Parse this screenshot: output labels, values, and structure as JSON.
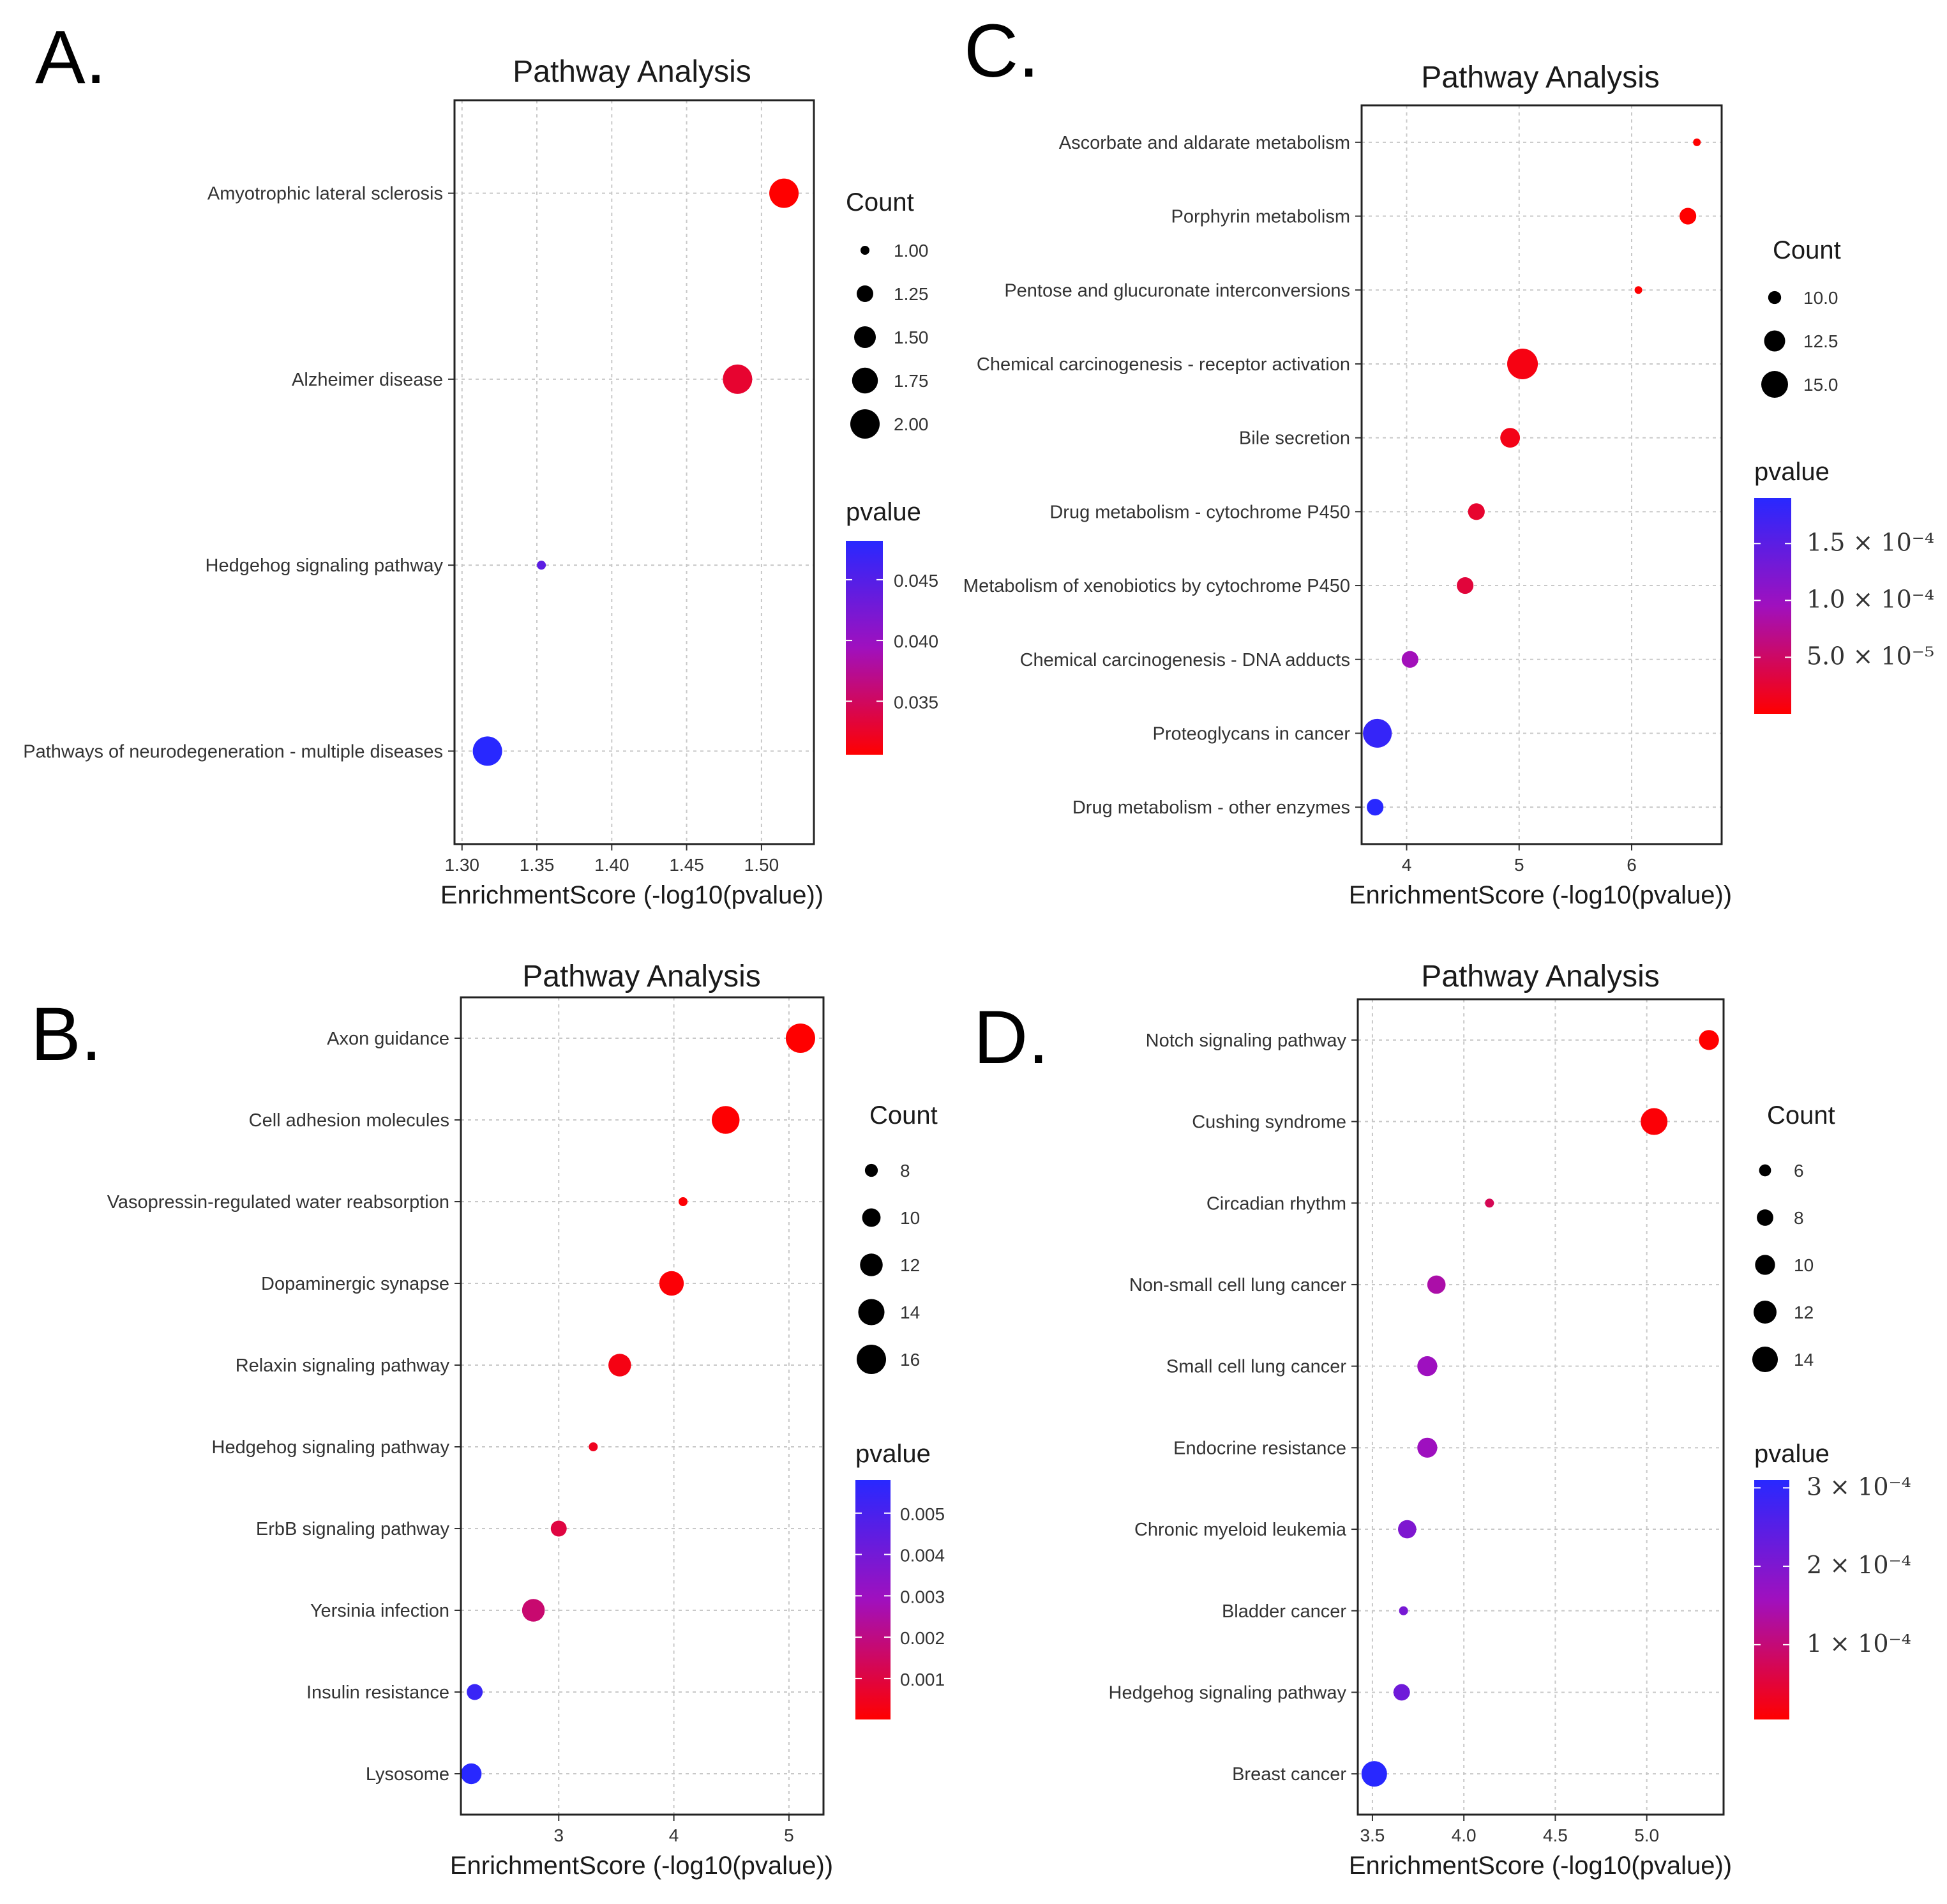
{
  "chart_data": [
    {
      "panel": "A.",
      "type": "scatter",
      "title": "Pathway Analysis",
      "xlabel": "EnrichmentScore (-log10(pvalue))",
      "xlim": [
        1.295,
        1.535
      ],
      "xticks": [
        "1.30",
        "1.35",
        "1.40",
        "1.45",
        "1.50"
      ],
      "xtick_values": [
        1.3,
        1.35,
        1.4,
        1.45,
        1.5
      ],
      "pathways": [
        {
          "name": "Amyotrophic lateral sclerosis",
          "score": 1.515,
          "count": 2,
          "pvalue": 0.0306
        },
        {
          "name": "Alzheimer disease",
          "score": 1.484,
          "count": 2,
          "pvalue": 0.0328
        },
        {
          "name": "Hedgehog signaling pathway",
          "score": 1.353,
          "count": 1,
          "pvalue": 0.0444
        },
        {
          "name": "Pathways of neurodegeneration - multiple diseases",
          "score": 1.317,
          "count": 2,
          "pvalue": 0.0482
        }
      ],
      "size_legend": {
        "title": "Count",
        "values": [
          1.0,
          1.25,
          1.5,
          1.75,
          2.0
        ],
        "labels": [
          "1.00",
          "1.25",
          "1.50",
          "1.75",
          "2.00"
        ]
      },
      "color_legend": {
        "title": "pvalue",
        "range": [
          0.0306,
          0.0482
        ],
        "ticks": [
          0.045,
          0.04,
          0.035
        ],
        "labels": [
          "0.045",
          "0.040",
          "0.035"
        ]
      }
    },
    {
      "panel": "B.",
      "type": "scatter",
      "title": "Pathway Analysis",
      "xlabel": "EnrichmentScore (-log10(pvalue))",
      "xlim": [
        2.15,
        5.3
      ],
      "xticks": [
        "3",
        "4",
        "5"
      ],
      "xtick_values": [
        3,
        4,
        5
      ],
      "pathways": [
        {
          "name": "Axon guidance",
          "score": 5.1,
          "count": 16,
          "pvalue": 1e-05
        },
        {
          "name": "Cell adhesion molecules",
          "score": 4.45,
          "count": 15,
          "pvalue": 4e-05
        },
        {
          "name": "Vasopressin-regulated water reabsorption",
          "score": 4.08,
          "count": 7,
          "pvalue": 8e-05
        },
        {
          "name": "Dopaminergic synapse",
          "score": 3.98,
          "count": 13,
          "pvalue": 0.0001
        },
        {
          "name": "Relaxin signaling pathway",
          "score": 3.53,
          "count": 12,
          "pvalue": 0.0003
        },
        {
          "name": "Hedgehog signaling pathway",
          "score": 3.3,
          "count": 7,
          "pvalue": 0.0005
        },
        {
          "name": "ErbB signaling pathway",
          "score": 3.0,
          "count": 9,
          "pvalue": 0.001
        },
        {
          "name": "Yersinia infection",
          "score": 2.78,
          "count": 12,
          "pvalue": 0.0017
        },
        {
          "name": "Insulin resistance",
          "score": 2.27,
          "count": 9,
          "pvalue": 0.0054
        },
        {
          "name": "Lysosome",
          "score": 2.24,
          "count": 11,
          "pvalue": 0.0058
        }
      ],
      "size_legend": {
        "title": "Count",
        "values": [
          8,
          10,
          12,
          14,
          16
        ],
        "labels": [
          "8",
          "10",
          "12",
          "14",
          "16"
        ]
      },
      "color_legend": {
        "title": "pvalue",
        "range": [
          1e-05,
          0.0058
        ],
        "ticks": [
          0.005,
          0.004,
          0.003,
          0.002,
          0.001
        ],
        "labels": [
          "0.005",
          "0.004",
          "0.003",
          "0.002",
          "0.001"
        ]
      }
    },
    {
      "panel": "C.",
      "type": "scatter",
      "title": "Pathway Analysis",
      "xlabel": "EnrichmentScore (-log10(pvalue))",
      "xlim": [
        3.6,
        6.8
      ],
      "xticks": [
        "4",
        "5",
        "6"
      ],
      "xtick_values": [
        4,
        5,
        6
      ],
      "pathways": [
        {
          "name": "Ascorbate and aldarate metabolism",
          "score": 6.58,
          "count": 9,
          "pvalue": 3e-07
        },
        {
          "name": "Porphyrin metabolism",
          "score": 6.5,
          "count": 11,
          "pvalue": 3e-07
        },
        {
          "name": "Pentose and glucuronate interconversions",
          "score": 6.06,
          "count": 9,
          "pvalue": 9e-07
        },
        {
          "name": "Chemical carcinogenesis - receptor activation",
          "score": 5.03,
          "count": 17,
          "pvalue": 9.3e-06
        },
        {
          "name": "Bile secretion",
          "score": 4.92,
          "count": 12,
          "pvalue": 1.2e-05
        },
        {
          "name": "Drug metabolism - cytochrome P450",
          "score": 4.62,
          "count": 11,
          "pvalue": 2.4e-05
        },
        {
          "name": "Metabolism of xenobiotics by cytochrome P450",
          "score": 4.52,
          "count": 11,
          "pvalue": 3e-05
        },
        {
          "name": "Chemical carcinogenesis - DNA adducts",
          "score": 4.03,
          "count": 11,
          "pvalue": 9.3e-05
        },
        {
          "name": "Proteoglycans in cancer",
          "score": 3.74,
          "count": 16,
          "pvalue": 0.00018
        },
        {
          "name": "Drug metabolism - other enzymes",
          "score": 3.72,
          "count": 11,
          "pvalue": 0.00019
        }
      ],
      "size_legend": {
        "title": "Count",
        "values": [
          10,
          12.5,
          15
        ],
        "labels": [
          "10.0",
          "12.5",
          "15.0"
        ]
      },
      "color_legend": {
        "title": "pvalue",
        "range": [
          3e-07,
          0.00019
        ],
        "ticks": [
          0.00015,
          0.0001,
          5e-05
        ],
        "labels": [
          "1.5 × 10⁻⁴",
          "1.0 × 10⁻⁴",
          "5.0 × 10⁻⁵"
        ]
      }
    },
    {
      "panel": "D.",
      "type": "scatter",
      "title": "Pathway Analysis",
      "xlabel": "EnrichmentScore (-log10(pvalue))",
      "xlim": [
        3.42,
        5.42
      ],
      "xticks": [
        "3.5",
        "4.0",
        "4.5",
        "5.0"
      ],
      "xtick_values": [
        3.5,
        4.0,
        4.5,
        5.0
      ],
      "pathways": [
        {
          "name": "Notch signaling pathway",
          "score": 5.34,
          "count": 10,
          "pvalue": 4.6e-06
        },
        {
          "name": "Cushing syndrome",
          "score": 5.04,
          "count": 15,
          "pvalue": 9.1e-06
        },
        {
          "name": "Circadian rhythm",
          "score": 4.14,
          "count": 5,
          "pvalue": 7.2e-05
        },
        {
          "name": "Non-small cell lung cancer",
          "score": 3.85,
          "count": 9,
          "pvalue": 0.00014
        },
        {
          "name": "Small cell lung cancer",
          "score": 3.8,
          "count": 10,
          "pvalue": 0.00016
        },
        {
          "name": "Endocrine resistance",
          "score": 3.8,
          "count": 10,
          "pvalue": 0.00016
        },
        {
          "name": "Chronic myeloid leukemia",
          "score": 3.69,
          "count": 9,
          "pvalue": 0.0002
        },
        {
          "name": "Bladder cancer",
          "score": 3.67,
          "count": 5,
          "pvalue": 0.00021
        },
        {
          "name": "Hedgehog signaling pathway",
          "score": 3.66,
          "count": 8,
          "pvalue": 0.00022
        },
        {
          "name": "Breast cancer",
          "score": 3.51,
          "count": 14,
          "pvalue": 0.00031
        }
      ],
      "size_legend": {
        "title": "Count",
        "values": [
          6,
          8,
          10,
          12,
          14
        ],
        "labels": [
          "6",
          "8",
          "10",
          "12",
          "14"
        ]
      },
      "color_legend": {
        "title": "pvalue",
        "range": [
          4.6e-06,
          0.00031
        ],
        "ticks": [
          0.0003,
          0.0002,
          0.0001
        ],
        "labels": [
          "3 × 10⁻⁴",
          "2 × 10⁻⁴",
          "1 × 10⁻⁴"
        ]
      }
    }
  ]
}
